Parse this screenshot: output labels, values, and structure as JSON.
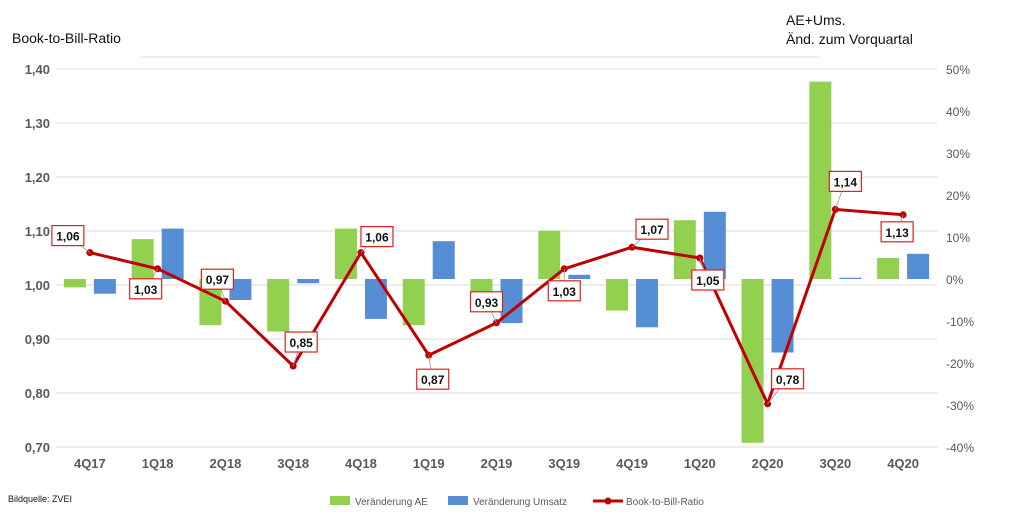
{
  "chart_data": {
    "type": "bar",
    "left_title": "Book-to-Bill-Ratio",
    "right_title_line1": "AE+Ums.",
    "right_title_line2": "Änd. zum Vorquartal",
    "source": "Bildquelle: ZVEI",
    "categories": [
      "4Q17",
      "1Q18",
      "2Q18",
      "3Q18",
      "4Q18",
      "1Q19",
      "2Q19",
      "3Q19",
      "4Q19",
      "1Q20",
      "2Q20",
      "3Q20",
      "4Q20"
    ],
    "y_left": {
      "range": [
        0.7,
        1.4
      ],
      "ticks": [
        "0,70",
        "0,80",
        "0,90",
        "1,00",
        "1,10",
        "1,20",
        "1,30",
        "1,40"
      ]
    },
    "y_right": {
      "range": [
        -40,
        50
      ],
      "ticks": [
        "-40%",
        "-30%",
        "-20%",
        "-10%",
        "0%",
        "10%",
        "20%",
        "30%",
        "40%",
        "50%"
      ]
    },
    "grid": true,
    "legend_placement": "bottom",
    "series": [
      {
        "name": "Veränderung AE",
        "type": "bar",
        "axis": "right",
        "color": "#92d050",
        "values": [
          -2,
          9.5,
          -11,
          -12.5,
          12,
          -11,
          -4,
          11.5,
          -7.5,
          14,
          -39,
          47,
          5
        ]
      },
      {
        "name": "Veränderung Umsatz",
        "type": "bar",
        "axis": "right",
        "color": "#558ed5",
        "values": [
          -3.5,
          12,
          -5,
          -1,
          -9.5,
          9,
          -10.5,
          1,
          -11.5,
          16,
          -17.5,
          0.3,
          6
        ]
      },
      {
        "name": "Book-to-Bill-Ratio",
        "type": "line",
        "axis": "left",
        "color": "#c00000",
        "values": [
          1.06,
          1.03,
          0.97,
          0.85,
          1.06,
          0.87,
          0.93,
          1.03,
          1.07,
          1.05,
          0.78,
          1.14,
          1.13
        ],
        "labels": [
          "1,06",
          "1,03",
          "0,97",
          "0,85",
          "1,06",
          "0,87",
          "0,93",
          "1,03",
          "1,07",
          "1,05",
          "0,78",
          "1,14",
          "1,13"
        ]
      }
    ]
  }
}
